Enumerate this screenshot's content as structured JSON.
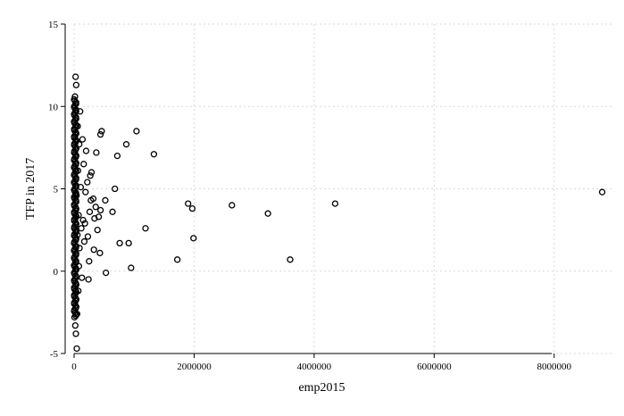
{
  "chart_data": {
    "type": "scatter",
    "xlabel": "emp2015",
    "ylabel": "TFP in 2017",
    "xlim": [
      0,
      9000000
    ],
    "ylim": [
      -5,
      15
    ],
    "xticks": [
      0,
      2000000,
      4000000,
      6000000,
      8000000
    ],
    "xtick_labels": [
      "0",
      "2000000",
      "4000000",
      "6000000",
      "8000000"
    ],
    "yticks": [
      -5,
      0,
      5,
      10,
      15
    ],
    "ytick_labels": [
      "-5",
      "0",
      "5",
      "10",
      "15"
    ],
    "grid": true,
    "marker": "hollow-circle",
    "colors": {
      "marker": "#000000",
      "grid": "#d9d9d9"
    },
    "points": [
      [
        8800000,
        4.8
      ],
      [
        4350000,
        4.1
      ],
      [
        3600000,
        0.7
      ],
      [
        3230000,
        3.5
      ],
      [
        2630000,
        4.0
      ],
      [
        1990000,
        2.0
      ],
      [
        1970000,
        3.8
      ],
      [
        1900000,
        4.1
      ],
      [
        1720000,
        0.7
      ],
      [
        1330000,
        7.1
      ],
      [
        1190000,
        2.6
      ],
      [
        1040000,
        8.5
      ],
      [
        950000,
        0.2
      ],
      [
        910000,
        1.7
      ],
      [
        870000,
        7.7
      ],
      [
        760000,
        1.7
      ],
      [
        720000,
        7.0
      ],
      [
        680000,
        5.0
      ],
      [
        640000,
        3.6
      ],
      [
        530000,
        -0.1
      ],
      [
        520000,
        4.3
      ],
      [
        460000,
        8.5
      ],
      [
        440000,
        8.3
      ],
      [
        440000,
        3.7
      ],
      [
        430000,
        1.1
      ],
      [
        410000,
        3.3
      ],
      [
        390000,
        2.5
      ],
      [
        370000,
        7.2
      ],
      [
        360000,
        3.9
      ],
      [
        340000,
        3.2
      ],
      [
        330000,
        1.3
      ],
      [
        320000,
        4.4
      ],
      [
        290000,
        6.0
      ],
      [
        280000,
        4.3
      ],
      [
        270000,
        5.8
      ],
      [
        260000,
        3.6
      ],
      [
        250000,
        0.6
      ],
      [
        240000,
        -0.5
      ],
      [
        230000,
        2.1
      ],
      [
        220000,
        5.4
      ],
      [
        200000,
        7.3
      ],
      [
        190000,
        4.8
      ],
      [
        180000,
        2.9
      ],
      [
        170000,
        1.8
      ],
      [
        160000,
        6.5
      ],
      [
        150000,
        3.1
      ],
      [
        140000,
        8.0
      ],
      [
        130000,
        -0.4
      ],
      [
        120000,
        2.6
      ],
      [
        110000,
        5.1
      ],
      [
        100000,
        9.7
      ],
      [
        90000,
        1.4
      ],
      [
        85000,
        7.7
      ],
      [
        80000,
        0.3
      ],
      [
        75000,
        3.4
      ],
      [
        70000,
        -1.2
      ],
      [
        65000,
        6.1
      ],
      [
        60000,
        8.8
      ],
      [
        55000,
        2.2
      ],
      [
        50000,
        -2.6
      ],
      [
        45000,
        -4.7
      ],
      [
        40000,
        4.6
      ],
      [
        35000,
        11.3
      ],
      [
        30000,
        -3.8
      ],
      [
        25000,
        11.8
      ],
      [
        20000,
        -3.3
      ],
      [
        15000,
        10.6
      ]
    ],
    "dense_band": {
      "x_max": 60000,
      "y_min": -2.8,
      "y_max": 10.5
    }
  }
}
